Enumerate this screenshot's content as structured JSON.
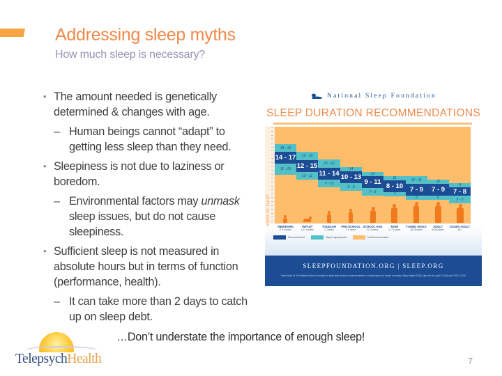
{
  "slide": {
    "title": "Addressing sleep myths",
    "subtitle": "How much sleep is necessary?",
    "page_number": "7",
    "accent_color": "#f7a542",
    "title_color": "#f0894a",
    "subtitle_color": "#9b8fb5"
  },
  "bullets": [
    {
      "level": 1,
      "text": "The amount needed is genetically determined & changes with age."
    },
    {
      "level": 2,
      "text": "Human beings cannot “adapt” to getting less sleep than they need."
    },
    {
      "level": 1,
      "text": "Sleepiness is not due to laziness or boredom."
    },
    {
      "level": 2,
      "text_before": "Environmental factors may ",
      "text_italic": "unmask",
      "text_after": " sleep issues, but do not cause sleepiness."
    },
    {
      "level": 1,
      "text": "Sufficient sleep is not measured in absolute hours but in terms of function (performance, health)."
    },
    {
      "level": 2,
      "text": "It can take more than 2 days to catch up on sleep debt."
    }
  ],
  "closing": "…Don’t understate the importance of enough sleep!",
  "logo": {
    "part1": "Telepsych",
    "part2": "Health"
  },
  "infographic": {
    "org": "National Sleep Foundation",
    "title": "SLEEP DURATION RECOMMENDATIONS",
    "y_axis_label": "HOURS OF SLEEP",
    "footer_url": "SLEEPFOUNDATION.ORG | SLEEP.ORG",
    "footer_citation": "Hirshkowitz M, The National Sleep Foundation's sleep time duration recommendations: methodology and results summary, Sleep Health (2015), http://dx.doi.org/10.1016/j.sleh.2014.12.010",
    "legend": [
      {
        "label": "Recommended",
        "color": "#1b4c94"
      },
      {
        "label": "May be Appropriate",
        "color": "#52c0c6"
      },
      {
        "label": "Not Recommended",
        "color": "#fdbd6b"
      }
    ],
    "groups": [
      {
        "name": "NEWBORN",
        "age": "0-3 months",
        "recommended": "14 - 17",
        "upper": "18 - 19",
        "lower": "11 - 13"
      },
      {
        "name": "INFANT",
        "age": "4-11 months",
        "recommended": "12 - 15",
        "upper": "16 - 18",
        "lower": "10 - 11"
      },
      {
        "name": "TODDLER",
        "age": "1-2 years",
        "recommended": "11 - 14",
        "upper": "15 - 16",
        "lower": "9 - 10"
      },
      {
        "name": "PRE-SCHOOL",
        "age": "3-5 years",
        "recommended": "10 - 13",
        "upper": "14",
        "lower": "8 - 9"
      },
      {
        "name": "SCHOOL AGE",
        "age": "6-13 years",
        "recommended": "9 - 11",
        "upper": "12",
        "lower": "7 - 8"
      },
      {
        "name": "TEEN",
        "age": "14-17 years",
        "recommended": "8 - 10",
        "upper": "11",
        "lower": "7"
      },
      {
        "name": "YOUNG ADULT",
        "age": "18-25 years",
        "recommended": "7 - 9",
        "upper": "10 - 11",
        "lower": "6"
      },
      {
        "name": "ADULT",
        "age": "26-64 years",
        "recommended": "7 - 9",
        "upper": "10",
        "lower": "6"
      },
      {
        "name": "OLDER ADULT",
        "age": "65+",
        "recommended": "7 - 8",
        "upper": "9",
        "lower": "5 - 6"
      }
    ]
  }
}
